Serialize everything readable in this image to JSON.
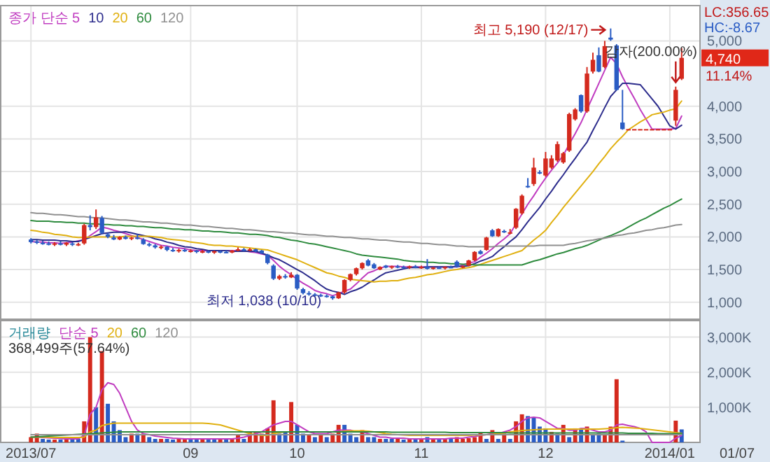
{
  "chart_data": [
    {
      "type": "candlestick",
      "tick_labels": "y",
      "grid": true,
      "legend": "top left",
      "ylim": [
        740,
        5540
      ],
      "yticks": [
        {
          "value": 1000,
          "label": "1,000"
        },
        {
          "value": 1500,
          "label": "1,500"
        },
        {
          "value": 2000,
          "label": "2,000"
        },
        {
          "value": 2500,
          "label": "2,500"
        },
        {
          "value": 3000,
          "label": "3,000"
        },
        {
          "value": 3500,
          "label": "3,500"
        },
        {
          "value": 4000,
          "label": "4,000"
        },
        {
          "value": 5000,
          "label": "5,000"
        }
      ],
      "categories": [
        "2013/07",
        null,
        null,
        null,
        null,
        null,
        null,
        null,
        null,
        null,
        null,
        null,
        null,
        null,
        null,
        null,
        null,
        null,
        null,
        null,
        null,
        null,
        null,
        null,
        null,
        null,
        null,
        "09",
        null,
        null,
        null,
        null,
        null,
        null,
        null,
        null,
        null,
        null,
        null,
        null,
        null,
        null,
        null,
        null,
        null,
        "10",
        null,
        null,
        null,
        null,
        null,
        null,
        null,
        null,
        null,
        null,
        null,
        null,
        null,
        null,
        null,
        null,
        null,
        null,
        null,
        null,
        "11",
        null,
        null,
        null,
        null,
        null,
        null,
        null,
        null,
        null,
        null,
        null,
        null,
        null,
        null,
        null,
        null,
        null,
        null,
        null,
        null,
        "12",
        null,
        null,
        null,
        null,
        null,
        null,
        null,
        null,
        null,
        null,
        null,
        null,
        null,
        null,
        null,
        null,
        null,
        null,
        null,
        null,
        "2014/01",
        null,
        null
      ],
      "ohlc": [
        [
          1960,
          1980,
          1900,
          1920
        ],
        [
          1930,
          1950,
          1890,
          1910
        ],
        [
          1910,
          1940,
          1880,
          1900
        ],
        [
          1900,
          1930,
          1870,
          1890
        ],
        [
          1890,
          1920,
          1860,
          1900
        ],
        [
          1900,
          1930,
          1870,
          1880
        ],
        [
          1880,
          1920,
          1860,
          1910
        ],
        [
          1900,
          1920,
          1860,
          1880
        ],
        [
          1880,
          1910,
          1860,
          1890
        ],
        [
          1900,
          2200,
          1880,
          2180
        ],
        [
          2180,
          2330,
          2100,
          2150
        ],
        [
          2150,
          2420,
          2120,
          2300
        ],
        [
          2290,
          2320,
          2040,
          2060
        ],
        [
          2040,
          2060,
          1980,
          2000
        ],
        [
          1990,
          2030,
          1950,
          1960
        ],
        [
          1960,
          2010,
          1950,
          2000
        ],
        [
          2000,
          2020,
          1960,
          1970
        ],
        [
          1970,
          2000,
          1950,
          1990
        ],
        [
          1990,
          2040,
          1960,
          1980
        ],
        [
          1960,
          1980,
          1880,
          1890
        ],
        [
          1890,
          1910,
          1850,
          1870
        ],
        [
          1870,
          1890,
          1820,
          1840
        ],
        [
          1840,
          1870,
          1810,
          1850
        ],
        [
          1850,
          1860,
          1780,
          1800
        ],
        [
          1800,
          1830,
          1770,
          1790
        ],
        [
          1790,
          1820,
          1760,
          1800
        ],
        [
          1800,
          1820,
          1770,
          1780
        ],
        [
          1780,
          1810,
          1760,
          1790
        ],
        [
          1790,
          1800,
          1750,
          1770
        ],
        [
          1770,
          1800,
          1750,
          1780
        ],
        [
          1780,
          1790,
          1750,
          1760
        ],
        [
          1760,
          1790,
          1740,
          1780
        ],
        [
          1780,
          1790,
          1750,
          1770
        ],
        [
          1770,
          1790,
          1750,
          1760
        ],
        [
          1760,
          1800,
          1750,
          1790
        ],
        [
          1790,
          1840,
          1780,
          1810
        ],
        [
          1810,
          1830,
          1780,
          1800
        ],
        [
          1800,
          1830,
          1780,
          1810
        ],
        [
          1810,
          1820,
          1760,
          1780
        ],
        [
          1790,
          1800,
          1740,
          1750
        ],
        [
          1730,
          1740,
          1580,
          1600
        ],
        [
          1560,
          1580,
          1340,
          1360
        ],
        [
          1360,
          1420,
          1340,
          1400
        ],
        [
          1400,
          1430,
          1360,
          1380
        ],
        [
          1380,
          1460,
          1370,
          1420
        ],
        [
          1420,
          1430,
          1190,
          1210
        ],
        [
          1200,
          1220,
          1120,
          1140
        ],
        [
          1140,
          1170,
          1100,
          1120
        ],
        [
          1120,
          1140,
          1090,
          1110
        ],
        [
          1110,
          1130,
          1080,
          1100
        ],
        [
          1100,
          1120,
          1070,
          1090
        ],
        [
          1090,
          1100,
          1038,
          1060
        ],
        [
          1060,
          1160,
          1050,
          1150
        ],
        [
          1150,
          1350,
          1130,
          1340
        ],
        [
          1340,
          1440,
          1320,
          1430
        ],
        [
          1430,
          1530,
          1410,
          1520
        ],
        [
          1520,
          1610,
          1500,
          1600
        ],
        [
          1640,
          1660,
          1550,
          1560
        ],
        [
          1580,
          1600,
          1510,
          1520
        ],
        [
          1500,
          1550,
          1490,
          1540
        ],
        [
          1560,
          1570,
          1520,
          1530
        ],
        [
          1530,
          1560,
          1510,
          1550
        ],
        [
          1550,
          1570,
          1520,
          1540
        ],
        [
          1540,
          1560,
          1510,
          1530
        ],
        [
          1530,
          1560,
          1510,
          1550
        ],
        [
          1550,
          1570,
          1520,
          1530
        ],
        [
          1530,
          1560,
          1510,
          1540
        ],
        [
          1540,
          1660,
          1500,
          1510
        ],
        [
          1510,
          1540,
          1500,
          1530
        ],
        [
          1530,
          1550,
          1510,
          1520
        ],
        [
          1520,
          1550,
          1500,
          1540
        ],
        [
          1540,
          1560,
          1520,
          1530
        ],
        [
          1620,
          1640,
          1530,
          1540
        ],
        [
          1530,
          1560,
          1520,
          1550
        ],
        [
          1560,
          1650,
          1550,
          1640
        ],
        [
          1640,
          1780,
          1630,
          1770
        ],
        [
          1780,
          1800,
          1730,
          1740
        ],
        [
          1800,
          2000,
          1790,
          1990
        ],
        [
          2100,
          2120,
          2000,
          2010
        ],
        [
          2010,
          2130,
          2000,
          2120
        ],
        [
          2090,
          2110,
          2060,
          2070
        ],
        [
          2060,
          2120,
          2040,
          2070
        ],
        [
          2140,
          2440,
          2120,
          2430
        ],
        [
          2360,
          2650,
          2340,
          2630
        ],
        [
          2780,
          2900,
          2750,
          2760
        ],
        [
          2810,
          3210,
          2780,
          3060
        ],
        [
          2990,
          3020,
          2960,
          2970
        ],
        [
          2940,
          3300,
          2920,
          3200
        ],
        [
          3060,
          3250,
          3040,
          3200
        ],
        [
          3170,
          3460,
          3150,
          3420
        ],
        [
          3140,
          3300,
          3120,
          3280
        ],
        [
          3320,
          3900,
          3300,
          3880
        ],
        [
          3800,
          3970,
          3780,
          3950
        ],
        [
          4170,
          4180,
          3900,
          3920
        ],
        [
          3920,
          4600,
          3900,
          4500
        ],
        [
          4530,
          4820,
          4500,
          4710
        ],
        [
          4780,
          4900,
          4520,
          4530
        ],
        [
          4600,
          5000,
          4580,
          4920
        ],
        [
          5050,
          5190,
          5000,
          5020
        ],
        [
          4930,
          4950,
          4240,
          4250
        ],
        [
          3750,
          4250,
          3640,
          3650
        ],
        [
          3650,
          3650,
          3650,
          3650
        ],
        [
          3650,
          3650,
          3650,
          3650
        ],
        [
          3650,
          3650,
          3650,
          3650
        ],
        [
          3650,
          3650,
          3650,
          3650
        ],
        [
          3650,
          3650,
          3650,
          3650
        ],
        [
          3650,
          3650,
          3650,
          3650
        ],
        [
          3650,
          3650,
          3650,
          3650
        ],
        [
          3650,
          3650,
          3650,
          3650
        ],
        [
          3780,
          4300,
          3700,
          4250
        ],
        [
          4420,
          4890,
          4400,
          4740
        ]
      ],
      "series": [
        {
          "name": "종가 단순 5",
          "type": "line",
          "color": "#c03cc0",
          "values": [
            1930,
            1920,
            1920,
            1910,
            1910,
            1900,
            1910,
            1920,
            1940,
            1950,
            2020,
            2080,
            2150,
            2130,
            2100,
            2080,
            2050,
            2020,
            1990,
            1960,
            1930,
            1900,
            1870,
            1860,
            1840,
            1830,
            1820,
            1800,
            1790,
            1790,
            1790,
            1790,
            1790,
            1790,
            1790,
            1790,
            1790,
            1770,
            1760,
            1740,
            1720,
            1640,
            1550,
            1480,
            1420,
            1350,
            1290,
            1240,
            1180,
            1150,
            1130,
            1100,
            1130,
            1170,
            1200,
            1280,
            1370,
            1450,
            1480,
            1520,
            1550,
            1550,
            1550,
            1540,
            1540,
            1540,
            1540,
            1540,
            1540,
            1540,
            1540,
            1540,
            1540,
            1570,
            1600,
            1620,
            1690,
            1750,
            1820,
            1900,
            1970,
            2050,
            2200,
            2350,
            2500,
            2630,
            2770,
            2900,
            3020,
            3130,
            3250,
            3420,
            3580,
            3750,
            3950,
            4150,
            4350,
            4550,
            4750,
            4650,
            4450,
            4280,
            4120,
            3950,
            3800,
            3650,
            3650,
            3650,
            3650,
            3660,
            3850
          ]
        },
        {
          "name": "10",
          "type": "line",
          "color": "#2c2c8c",
          "values": [
            1960,
            1960,
            1950,
            1950,
            1950,
            1940,
            1940,
            1930,
            1930,
            1960,
            1990,
            2020,
            2050,
            2060,
            2070,
            2070,
            2080,
            2060,
            2040,
            2020,
            2000,
            1970,
            1950,
            1920,
            1900,
            1870,
            1850,
            1840,
            1820,
            1810,
            1790,
            1790,
            1790,
            1790,
            1780,
            1780,
            1780,
            1780,
            1780,
            1750,
            1720,
            1680,
            1650,
            1600,
            1550,
            1500,
            1450,
            1390,
            1330,
            1260,
            1200,
            1170,
            1150,
            1120,
            1160,
            1190,
            1230,
            1290,
            1340,
            1400,
            1450,
            1470,
            1490,
            1510,
            1530,
            1530,
            1530,
            1540,
            1540,
            1540,
            1540,
            1540,
            1550,
            1550,
            1560,
            1590,
            1630,
            1660,
            1700,
            1780,
            1850,
            1930,
            2000,
            2110,
            2230,
            2340,
            2450,
            2580,
            2700,
            2830,
            2950,
            3080,
            3200,
            3330,
            3450,
            3630,
            3800,
            3980,
            4150,
            4250,
            4350,
            4350,
            4340,
            4330,
            4220,
            4110,
            4000,
            3850,
            3700,
            3650,
            3710
          ]
        },
        {
          "name": "20",
          "type": "line",
          "color": "#e0b010",
          "values": [
            2100,
            2090,
            2070,
            2060,
            2040,
            2030,
            2020,
            2000,
            1990,
            1990,
            2000,
            2000,
            2000,
            2000,
            2000,
            2000,
            2010,
            2010,
            2010,
            2010,
            2010,
            2000,
            1990,
            1970,
            1960,
            1950,
            1940,
            1920,
            1910,
            1900,
            1880,
            1870,
            1870,
            1860,
            1860,
            1850,
            1840,
            1830,
            1820,
            1810,
            1800,
            1770,
            1740,
            1710,
            1680,
            1650,
            1610,
            1570,
            1530,
            1490,
            1450,
            1430,
            1400,
            1380,
            1350,
            1340,
            1330,
            1320,
            1310,
            1320,
            1320,
            1330,
            1330,
            1350,
            1370,
            1380,
            1400,
            1420,
            1430,
            1450,
            1470,
            1490,
            1500,
            1520,
            1530,
            1550,
            1580,
            1610,
            1640,
            1670,
            1700,
            1730,
            1760,
            1790,
            1870,
            1950,
            2020,
            2100,
            2220,
            2330,
            2450,
            2560,
            2670,
            2780,
            2890,
            3000,
            3120,
            3230,
            3350,
            3450,
            3540,
            3640,
            3700,
            3760,
            3810,
            3870,
            3890,
            3910,
            3940,
            3960,
            4080
          ]
        },
        {
          "name": "60",
          "type": "line",
          "color": "#2e8b3e",
          "values": [
            2250,
            2240,
            2240,
            2240,
            2230,
            2230,
            2220,
            2220,
            2210,
            2210,
            2200,
            2200,
            2190,
            2190,
            2180,
            2180,
            2170,
            2170,
            2160,
            2160,
            2150,
            2140,
            2140,
            2130,
            2120,
            2120,
            2110,
            2110,
            2100,
            2090,
            2090,
            2080,
            2080,
            2070,
            2060,
            2060,
            2050,
            2040,
            2040,
            2030,
            2020,
            2000,
            1990,
            1970,
            1950,
            1940,
            1920,
            1900,
            1890,
            1870,
            1850,
            1830,
            1810,
            1790,
            1770,
            1740,
            1720,
            1710,
            1700,
            1690,
            1680,
            1670,
            1660,
            1640,
            1630,
            1620,
            1620,
            1610,
            1610,
            1600,
            1600,
            1590,
            1590,
            1580,
            1580,
            1570,
            1570,
            1570,
            1570,
            1570,
            1570,
            1570,
            1570,
            1570,
            1600,
            1630,
            1650,
            1680,
            1710,
            1740,
            1760,
            1790,
            1820,
            1840,
            1870,
            1910,
            1950,
            1990,
            2020,
            2060,
            2100,
            2150,
            2200,
            2250,
            2290,
            2340,
            2390,
            2440,
            2480,
            2530,
            2580
          ]
        },
        {
          "name": "120",
          "type": "line",
          "color": "#909090",
          "values": [
            2370,
            2360,
            2360,
            2350,
            2340,
            2340,
            2330,
            2320,
            2310,
            2310,
            2300,
            2290,
            2290,
            2280,
            2270,
            2260,
            2260,
            2250,
            2240,
            2230,
            2230,
            2220,
            2210,
            2210,
            2200,
            2190,
            2180,
            2180,
            2170,
            2160,
            2160,
            2150,
            2140,
            2130,
            2130,
            2120,
            2110,
            2110,
            2100,
            2090,
            2080,
            2080,
            2070,
            2060,
            2060,
            2050,
            2040,
            2030,
            2030,
            2020,
            2010,
            2010,
            2000,
            1990,
            1990,
            1980,
            1970,
            1970,
            1960,
            1950,
            1950,
            1940,
            1930,
            1920,
            1920,
            1910,
            1900,
            1900,
            1890,
            1880,
            1880,
            1870,
            1860,
            1860,
            1850,
            1850,
            1850,
            1850,
            1850,
            1860,
            1860,
            1860,
            1860,
            1860,
            1860,
            1860,
            1870,
            1870,
            1870,
            1870,
            1870,
            1890,
            1900,
            1920,
            1940,
            1950,
            1970,
            1980,
            2000,
            2020,
            2030,
            2050,
            2060,
            2080,
            2100,
            2110,
            2130,
            2140,
            2160,
            2180,
            2190
          ]
        }
      ],
      "annotations": [
        "최고 5,190 (12/17)",
        "최저 1,038 (10/10)",
        {
          "text": "감자(200.00%)",
          "y": 4300
        },
        "LC:356.65",
        "HC:-8.67",
        "4,740",
        "11.14%"
      ]
    },
    {
      "type": "bar",
      "grid": true,
      "legend": "top left",
      "legend_title": "거래량",
      "ylim": [
        0,
        3470
      ],
      "yticks": [
        {
          "value": 1000,
          "label": "1,000K"
        },
        {
          "value": 2000,
          "label": "2,000K"
        },
        {
          "value": 3000,
          "label": "3,000K"
        }
      ],
      "categories": [
        "2013/07",
        null,
        null,
        null,
        null,
        null,
        null,
        null,
        null,
        null,
        null,
        null,
        null,
        null,
        null,
        null,
        null,
        null,
        null,
        null,
        null,
        null,
        null,
        null,
        null,
        null,
        null,
        "09",
        null,
        null,
        null,
        null,
        null,
        null,
        null,
        null,
        null,
        null,
        null,
        null,
        null,
        null,
        null,
        null,
        null,
        "10",
        null,
        null,
        null,
        null,
        null,
        null,
        null,
        null,
        null,
        null,
        null,
        null,
        null,
        null,
        null,
        null,
        null,
        null,
        null,
        null,
        "11",
        null,
        null,
        null,
        null,
        null,
        null,
        null,
        null,
        null,
        null,
        null,
        null,
        null,
        null,
        null,
        null,
        null,
        null,
        null,
        null,
        "12",
        null,
        null,
        null,
        null,
        null,
        null,
        null,
        null,
        null,
        null,
        null,
        null,
        null,
        null,
        null,
        null,
        null,
        null,
        null,
        null,
        "2014/01",
        null,
        null
      ],
      "series": [
        {
          "type": "bar",
          "values": [
            150,
            250,
            100,
            80,
            80,
            80,
            150,
            80,
            100,
            600,
            3000,
            1000,
            2600,
            1100,
            600,
            350,
            150,
            250,
            250,
            250,
            150,
            100,
            100,
            100,
            80,
            120,
            100,
            80,
            80,
            80,
            80,
            80,
            100,
            80,
            120,
            200,
            100,
            300,
            300,
            250,
            400,
            1200,
            250,
            300,
            1150,
            500,
            250,
            200,
            150,
            200,
            150,
            250,
            500,
            500,
            250,
            150,
            350,
            150,
            150,
            100,
            100,
            100,
            100,
            80,
            100,
            80,
            100,
            150,
            100,
            80,
            100,
            100,
            150,
            100,
            120,
            150,
            300,
            100,
            350,
            100,
            250,
            100,
            600,
            800,
            750,
            700,
            450,
            400,
            300,
            250,
            500,
            150,
            400,
            400,
            450,
            200,
            250,
            200,
            450,
            1800,
            50,
            0,
            0,
            0,
            0,
            0,
            0,
            0,
            0,
            620,
            370
          ],
          "colors": [
            "#d42a1e",
            "#d42a1e",
            "#2a5cc4",
            "#2a5cc4",
            "#d42a1e",
            "#2a5cc4",
            "#d42a1e",
            "#2a5cc4",
            "#2a5cc4",
            "#d42a1e",
            "#d42a1e",
            "#2a5cc4",
            "#d42a1e",
            "#2a5cc4",
            "#2a5cc4",
            "#2a5cc4",
            "#2a5cc4",
            "#d42a1e",
            "#2a5cc4",
            "#d42a1e",
            "#2a5cc4",
            "#2a5cc4",
            "#d42a1e",
            "#2a5cc4",
            "#2a5cc4",
            "#d42a1e",
            "#d42a1e",
            "#2a5cc4",
            "#2a5cc4",
            "#d42a1e",
            "#2a5cc4",
            "#2a5cc4",
            "#d42a1e",
            "#2a5cc4",
            "#d42a1e",
            "#d42a1e",
            "#2a5cc4",
            "#d42a1e",
            "#d42a1e",
            "#d42a1e",
            "#d42a1e",
            "#d42a1e",
            "#2a5cc4",
            "#2a5cc4",
            "#d42a1e",
            "#2a5cc4",
            "#2a5cc4",
            "#d42a1e",
            "#2a5cc4",
            "#d42a1e",
            "#2a5cc4",
            "#d42a1e",
            "#d42a1e",
            "#2a5cc4",
            "#2a5cc4",
            "#2a5cc4",
            "#d42a1e",
            "#2a5cc4",
            "#2a5cc4",
            "#d42a1e",
            "#2a5cc4",
            "#2a5cc4",
            "#d42a1e",
            "#2a5cc4",
            "#d42a1e",
            "#2a5cc4",
            "#d42a1e",
            "#2a5cc4",
            "#d42a1e",
            "#2a5cc4",
            "#d42a1e",
            "#2a5cc4",
            "#d42a1e",
            "#d42a1e",
            "#d42a1e",
            "#d42a1e",
            "#d42a1e",
            "#2a5cc4",
            "#d42a1e",
            "#2a5cc4",
            "#d42a1e",
            "#2a5cc4",
            "#d42a1e",
            "#d42a1e",
            "#2a5cc4",
            "#2a5cc4",
            "#2a5cc4",
            "#2a5cc4",
            "#d42a1e",
            "#2a5cc4",
            "#d42a1e",
            "#2a5cc4",
            "#d42a1e",
            "#2a5cc4",
            "#d42a1e",
            "#2a5cc4",
            "#2a5cc4",
            "#d42a1e",
            "#d42a1e",
            "#d42a1e",
            "#2a5cc4",
            "#2a5cc4",
            "#2a5cc4",
            "#2a5cc4",
            "#2a5cc4",
            "#2a5cc4",
            "#2a5cc4",
            "#2a5cc4",
            "#2a5cc4",
            "#d42a1e",
            "#2a5cc4"
          ]
        },
        {
          "name": "단순 5",
          "type": "line",
          "color": "#c03cc0",
          "values": [
            150,
            150,
            140,
            130,
            120,
            110,
            100,
            100,
            100,
            200,
            800,
            1000,
            1500,
            1700,
            1650,
            1400,
            1000,
            600,
            350,
            250,
            220,
            180,
            160,
            140,
            120,
            110,
            100,
            100,
            100,
            100,
            100,
            100,
            100,
            100,
            100,
            120,
            150,
            200,
            250,
            300,
            400,
            500,
            550,
            600,
            600,
            500,
            400,
            300,
            250,
            250,
            250,
            300,
            350,
            350,
            350,
            300,
            300,
            250,
            200,
            150,
            150,
            120,
            120,
            120,
            100,
            100,
            100,
            100,
            100,
            100,
            100,
            120,
            120,
            120,
            150,
            170,
            200,
            220,
            250,
            250,
            300,
            350,
            450,
            600,
            700,
            720,
            700,
            600,
            500,
            400,
            400,
            350,
            350,
            400,
            400,
            350,
            300,
            300,
            350,
            500,
            520,
            480,
            450,
            400,
            300,
            0,
            0,
            0,
            0,
            120,
            200
          ]
        },
        {
          "name": "20",
          "type": "line",
          "color": "#e0b010",
          "values": [
            150,
            150,
            150,
            150,
            140,
            140,
            140,
            140,
            140,
            150,
            300,
            350,
            480,
            520,
            550,
            550,
            550,
            550,
            550,
            550,
            550,
            550,
            550,
            550,
            550,
            550,
            550,
            550,
            550,
            550,
            540,
            520,
            500,
            450,
            400,
            350,
            300,
            250,
            220,
            200,
            200,
            250,
            280,
            300,
            300,
            300,
            300,
            300,
            300,
            300,
            300,
            300,
            300,
            320,
            330,
            330,
            330,
            320,
            300,
            280,
            250,
            230,
            220,
            210,
            200,
            200,
            200,
            200,
            200,
            200,
            200,
            200,
            200,
            200,
            200,
            210,
            210,
            220,
            230,
            250,
            270,
            300,
            320,
            340,
            350,
            360,
            370,
            380,
            380,
            380,
            380,
            380,
            380,
            380,
            380,
            380,
            380,
            390,
            400,
            420,
            430,
            420,
            410,
            400,
            380,
            360,
            340,
            320,
            300,
            280,
            260
          ]
        },
        {
          "name": "60",
          "type": "line",
          "color": "#2e8b3e",
          "values": [
            150,
            160,
            170,
            180,
            190,
            200,
            210,
            220,
            230,
            240,
            250,
            260,
            270,
            280,
            290,
            300,
            300,
            300,
            300,
            300,
            300,
            300,
            300,
            300,
            300,
            300,
            300,
            300,
            300,
            300,
            300,
            300,
            300,
            300,
            300,
            300,
            300,
            300,
            300,
            300,
            300,
            300,
            300,
            300,
            300,
            300,
            300,
            300,
            300,
            300,
            300,
            300,
            300,
            300,
            300,
            300,
            300,
            300,
            300,
            300,
            300,
            290,
            290,
            290,
            290,
            290,
            290,
            290,
            290,
            290,
            290,
            280,
            280,
            280,
            280,
            280,
            280,
            280,
            280,
            280,
            280,
            270,
            270,
            270,
            270,
            270,
            270,
            270,
            270,
            270,
            270,
            270,
            270,
            270,
            270,
            270,
            270,
            270,
            270,
            270,
            270,
            260,
            260,
            260,
            260,
            260,
            250,
            250,
            250,
            250,
            250
          ]
        },
        {
          "name": "120",
          "type": "line",
          "color": "#909090",
          "values": [
            220,
            220,
            220,
            220,
            220,
            220,
            220,
            220,
            220,
            220,
            220,
            220,
            220,
            220,
            220,
            220,
            220,
            220,
            220,
            220,
            220,
            220,
            220,
            220,
            220,
            220,
            220,
            220,
            220,
            220,
            220,
            220,
            220,
            220,
            220,
            220,
            220,
            220,
            220,
            220,
            220,
            220,
            220,
            220,
            220,
            220,
            220,
            220,
            220,
            220,
            220,
            220,
            220,
            220,
            220,
            220,
            220,
            220,
            220,
            220,
            220,
            220,
            220,
            220,
            220,
            220,
            220,
            220,
            220,
            220,
            220,
            220,
            220,
            220,
            220,
            220,
            220,
            220,
            220,
            220,
            220,
            220,
            220,
            220,
            220,
            220,
            220,
            220,
            220,
            220,
            220,
            220,
            220,
            220,
            220,
            220,
            220,
            220,
            220,
            220,
            220,
            220,
            220,
            220,
            220,
            220,
            220,
            220,
            220,
            220,
            220
          ]
        }
      ],
      "annotations": [
        "368,499주(57.64%)",
        "01/07"
      ]
    }
  ]
}
